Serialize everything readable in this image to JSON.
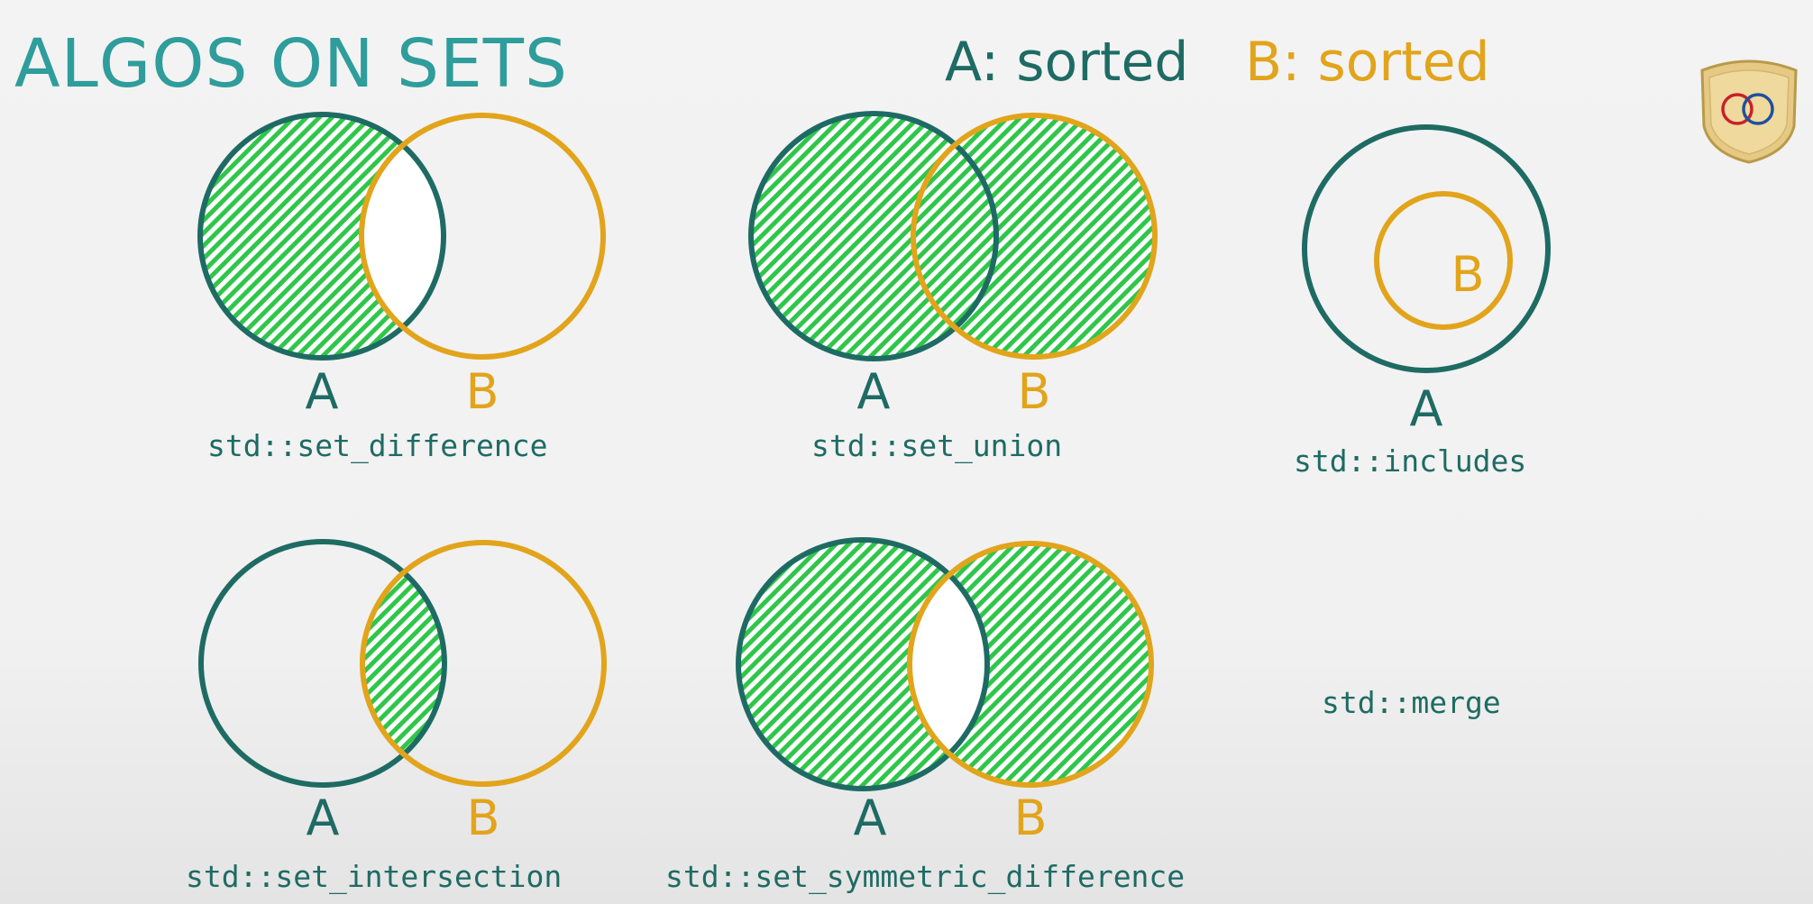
{
  "title": "ALGOS ON SETS",
  "legend": {
    "a": "A: sorted",
    "b": "B: sorted"
  },
  "set_labels": {
    "a": "A",
    "b": "B"
  },
  "functions": {
    "difference": "std::set_difference",
    "union": "std::set_union",
    "includes": "std::includes",
    "intersection": "std::set_intersection",
    "symmetric_difference": "std::set_symmetric_difference",
    "merge": "std::merge"
  },
  "colors": {
    "set_a": "#1e6b64",
    "set_b": "#e2a41b",
    "fill": "#2fc64a",
    "title": "#2e9d9b"
  },
  "icons": [
    "shield-icon",
    "interlocking-rings-icon"
  ]
}
